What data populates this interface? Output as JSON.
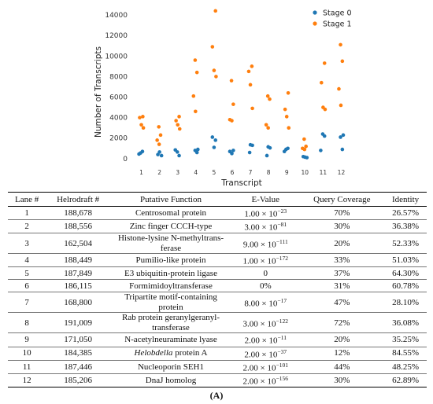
{
  "chart_data": {
    "type": "scatter",
    "xlabel": "Transcript",
    "ylabel": "Number of Transcripts",
    "x_ticks": [
      "1",
      "2",
      "3",
      "4",
      "5",
      "6",
      "7",
      "8",
      "9",
      "10",
      "11",
      "12"
    ],
    "y_ticks": [
      "0",
      "2000",
      "4000",
      "6000",
      "8000",
      "10000",
      "12000",
      "14000"
    ],
    "ylim": [
      -700,
      15000
    ],
    "grid": false,
    "legend_position": "top-right",
    "series": [
      {
        "name": "Stage 0",
        "color": "#1f77b4",
        "points": [
          [
            1,
            450
          ],
          [
            1,
            700
          ],
          [
            1,
            550
          ],
          [
            2,
            300
          ],
          [
            2,
            650
          ],
          [
            2,
            400
          ],
          [
            3,
            300
          ],
          [
            3,
            650
          ],
          [
            3,
            850
          ],
          [
            4,
            600
          ],
          [
            4,
            800
          ],
          [
            4,
            900
          ],
          [
            5,
            1100
          ],
          [
            5,
            2100
          ],
          [
            5,
            1800
          ],
          [
            6,
            500
          ],
          [
            6,
            700
          ],
          [
            6,
            800
          ],
          [
            7,
            600
          ],
          [
            7,
            1300
          ],
          [
            7,
            1350
          ],
          [
            8,
            300
          ],
          [
            8,
            1050
          ],
          [
            8,
            1150
          ],
          [
            9,
            700
          ],
          [
            9,
            1000
          ],
          [
            9,
            900
          ],
          [
            10,
            100
          ],
          [
            10,
            150
          ],
          [
            10,
            200
          ],
          [
            11,
            2200
          ],
          [
            11,
            2400
          ],
          [
            11,
            800
          ],
          [
            12,
            900
          ],
          [
            12,
            2100
          ],
          [
            12,
            2300
          ]
        ]
      },
      {
        "name": "Stage 1",
        "color": "#ff7f0e",
        "points": [
          [
            1,
            3000
          ],
          [
            1,
            3300
          ],
          [
            1,
            4000
          ],
          [
            1,
            4100
          ],
          [
            2,
            1400
          ],
          [
            2,
            1800
          ],
          [
            2,
            2300
          ],
          [
            2,
            3100
          ],
          [
            3,
            2900
          ],
          [
            3,
            3300
          ],
          [
            3,
            3700
          ],
          [
            3,
            4100
          ],
          [
            4,
            4600
          ],
          [
            4,
            6100
          ],
          [
            4,
            8400
          ],
          [
            4,
            9600
          ],
          [
            5,
            8000
          ],
          [
            5,
            8600
          ],
          [
            5,
            10900
          ],
          [
            5,
            14400
          ],
          [
            6,
            3700
          ],
          [
            6,
            3800
          ],
          [
            6,
            5300
          ],
          [
            6,
            7600
          ],
          [
            7,
            4900
          ],
          [
            7,
            7200
          ],
          [
            7,
            8500
          ],
          [
            7,
            9000
          ],
          [
            8,
            3000
          ],
          [
            8,
            3300
          ],
          [
            8,
            5800
          ],
          [
            8,
            6100
          ],
          [
            9,
            3000
          ],
          [
            9,
            4100
          ],
          [
            9,
            4800
          ],
          [
            9,
            6400
          ],
          [
            10,
            900
          ],
          [
            10,
            1000
          ],
          [
            10,
            1200
          ],
          [
            10,
            1900
          ],
          [
            11,
            4800
          ],
          [
            11,
            5000
          ],
          [
            11,
            7400
          ],
          [
            11,
            9300
          ],
          [
            12,
            5200
          ],
          [
            12,
            6800
          ],
          [
            12,
            9500
          ],
          [
            12,
            11100
          ]
        ]
      }
    ]
  },
  "table": {
    "headers": [
      "Lane #",
      "Helrodraft #",
      "Putative Function",
      "E-Value",
      "Query Coverage",
      "Identity"
    ],
    "rows": [
      {
        "lane": "1",
        "helrodraft": "188,678",
        "func": "Centrosomal protein",
        "e_mant": "1.00 × 10",
        "e_exp": "−23",
        "coverage": "70%",
        "identity": "26.57%"
      },
      {
        "lane": "2",
        "helrodraft": "188,556",
        "func": "Zinc finger CCCH-type",
        "e_mant": "3.00 × 10",
        "e_exp": "−81",
        "coverage": "30%",
        "identity": "36.38%"
      },
      {
        "lane": "3",
        "helrodraft": "162,504",
        "func": "Histone-lysine N-methyltrans-ferase",
        "e_mant": "9.00 × 10",
        "e_exp": "−111",
        "coverage": "20%",
        "identity": "52.33%"
      },
      {
        "lane": "4",
        "helrodraft": "188,449",
        "func": "Pumilio-like protein",
        "e_mant": "1.00 × 10",
        "e_exp": "−172",
        "coverage": "33%",
        "identity": "51.03%"
      },
      {
        "lane": "5",
        "helrodraft": "187,849",
        "func": "E3 ubiquitin-protein ligase",
        "e_mant": "0",
        "e_exp": "",
        "coverage": "37%",
        "identity": "64.30%"
      },
      {
        "lane": "6",
        "helrodraft": "186,115",
        "func": "Formimidoyltransferase",
        "e_mant": "0%",
        "e_exp": "",
        "coverage": "31%",
        "identity": "60.78%"
      },
      {
        "lane": "7",
        "helrodraft": "168,800",
        "func": "Tripartite motif-containing protein",
        "e_mant": "8.00 × 10",
        "e_exp": "−17",
        "coverage": "47%",
        "identity": "28.10%"
      },
      {
        "lane": "8",
        "helrodraft": "191,009",
        "func": "Rab protein geranylgeranyl-transferase",
        "e_mant": "3.00 × 10",
        "e_exp": "−122",
        "coverage": "72%",
        "identity": "36.08%"
      },
      {
        "lane": "9",
        "helrodraft": "171,050",
        "func": "N-acetylneuraminate lyase",
        "e_mant": "2.00 × 10",
        "e_exp": "−11",
        "coverage": "20%",
        "identity": "35.25%"
      },
      {
        "lane": "10",
        "helrodraft": "184,385",
        "func": "Helobdella protein A",
        "func_italic": "Helobdella",
        "func_rest": " protein A",
        "e_mant": "2.00 × 10",
        "e_exp": "−37",
        "coverage": "12%",
        "identity": "84.55%"
      },
      {
        "lane": "11",
        "helrodraft": "187,446",
        "func": "Nucleoporin SEH1",
        "e_mant": "2.00 × 10",
        "e_exp": "−101",
        "coverage": "44%",
        "identity": "48.25%"
      },
      {
        "lane": "12",
        "helrodraft": "185,206",
        "func": "DnaJ homolog",
        "e_mant": "2.00 × 10",
        "e_exp": "−156",
        "coverage": "30%",
        "identity": "62.89%"
      }
    ]
  },
  "caption": "(A)"
}
